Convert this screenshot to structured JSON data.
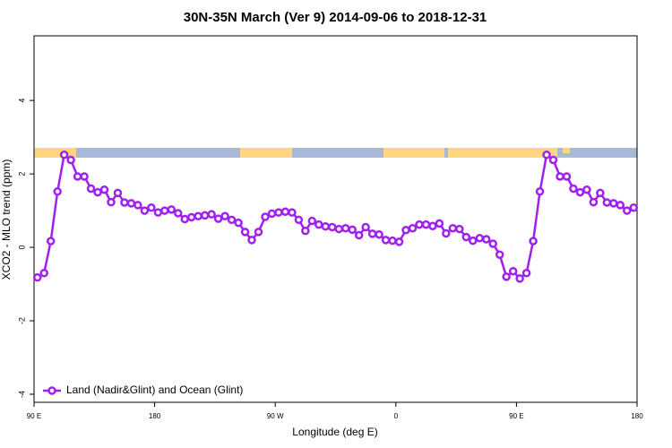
{
  "chart_data": {
    "type": "line",
    "title": "30N-35N March (Ver 9)   2014-09-06 to 2018-12-31",
    "x_label": "Longitude (deg E)",
    "y_label": "XCO2 - MLO trend (ppm)",
    "x": [
      92.5,
      97.5,
      102.5,
      107.5,
      112.5,
      117.5,
      122.5,
      127.5,
      132.5,
      137.5,
      142.5,
      147.5,
      152.5,
      157.5,
      162.5,
      167.5,
      172.5,
      177.5,
      182.5,
      187.5,
      192.5,
      197.5,
      202.5,
      207.5,
      212.5,
      217.5,
      222.5,
      227.5,
      232.5,
      237.5,
      242.5,
      247.5,
      252.5,
      257.5,
      262.5,
      267.5,
      272.5,
      277.5,
      282.5,
      287.5,
      292.5,
      297.5,
      302.5,
      307.5,
      312.5,
      317.5,
      322.5,
      327.5,
      332.5,
      337.5,
      342.5,
      347.5,
      352.5,
      357.5,
      362.5,
      367.5,
      372.5,
      377.5,
      382.5,
      387.5,
      392.5,
      397.5,
      402.5,
      407.5,
      412.5,
      417.5,
      422.5,
      427.5,
      432.5,
      437.5,
      442.5,
      447.5,
      452.5,
      457.5,
      462.5,
      467.5,
      472.5,
      477.5,
      482.5,
      487.5,
      492.5,
      497.5,
      502.5,
      507.5,
      512.5,
      517.5,
      522.5,
      527.5,
      532.5,
      537.5
    ],
    "series": [
      {
        "name": "Land (Nadir&Glint) and Ocean (Glint)",
        "color": "#a020f0",
        "values": [
          -0.82,
          -0.7,
          0.17,
          1.52,
          2.52,
          2.38,
          1.93,
          1.93,
          1.6,
          1.5,
          1.57,
          1.23,
          1.48,
          1.22,
          1.2,
          1.15,
          1.0,
          1.08,
          0.95,
          1.0,
          1.03,
          0.93,
          0.77,
          0.82,
          0.85,
          0.87,
          0.9,
          0.78,
          0.85,
          0.75,
          0.67,
          0.42,
          0.2,
          0.42,
          0.83,
          0.92,
          0.95,
          0.97,
          0.95,
          0.75,
          0.45,
          0.72,
          0.62,
          0.57,
          0.55,
          0.5,
          0.52,
          0.48,
          0.33,
          0.55,
          0.37,
          0.35,
          0.2,
          0.18,
          0.15,
          0.47,
          0.52,
          0.62,
          0.62,
          0.58,
          0.65,
          0.38,
          0.52,
          0.5,
          0.28,
          0.18,
          0.25,
          0.22,
          0.1,
          -0.2,
          -0.8,
          -0.65,
          -0.85,
          -0.7,
          0.17,
          1.52,
          2.52,
          2.38,
          1.93,
          1.93,
          1.6,
          1.5,
          1.57,
          1.23,
          1.48,
          1.22,
          1.2,
          1.15,
          1.0,
          1.08
        ]
      }
    ],
    "xlim": [
      90,
      540
    ],
    "xticks": [
      {
        "value": 90,
        "label": "90 E"
      },
      {
        "value": 180,
        "label": "180"
      },
      {
        "value": 270,
        "label": "90 W"
      },
      {
        "value": 360,
        "label": "0"
      },
      {
        "value": 450,
        "label": "90 E"
      },
      {
        "value": 540,
        "label": "180"
      }
    ],
    "ylim": [
      -4.22,
      5.76
    ],
    "yticks": [
      -4,
      -2,
      0,
      2,
      4
    ],
    "legend": "bottom-left"
  }
}
